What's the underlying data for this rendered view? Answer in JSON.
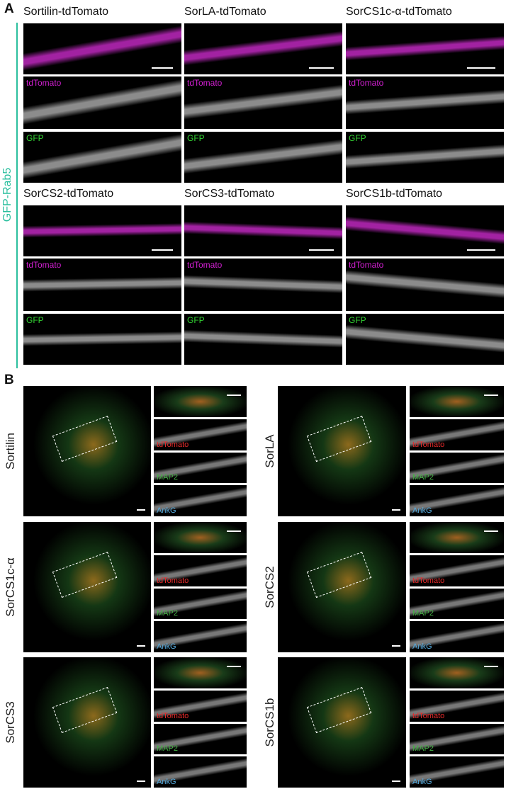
{
  "panel_a": {
    "label": "A",
    "side_label": "GFP-Rab5",
    "panels": [
      {
        "title": "Sortilin-tdTomato",
        "channels": [
          "tdTomato",
          "GFP"
        ]
      },
      {
        "title": "SorLA-tdTomato",
        "channels": [
          "tdTomato",
          "GFP"
        ]
      },
      {
        "title": "SorCS1c-α-tdTomato",
        "channels": [
          "tdTomato",
          "GFP"
        ]
      },
      {
        "title": "SorCS2-tdTomato",
        "channels": [
          "tdTomato",
          "GFP"
        ]
      },
      {
        "title": "SorCS3-tdTomato",
        "channels": [
          "tdTomato",
          "GFP"
        ]
      },
      {
        "title": "SorCS1b-tdTomato",
        "channels": [
          "tdTomato",
          "GFP"
        ]
      }
    ]
  },
  "panel_b": {
    "label": "B",
    "panels": [
      {
        "name": "Sortilin",
        "channels": [
          "tdTomato",
          "MAP2",
          "AnkG"
        ]
      },
      {
        "name": "SorLA",
        "channels": [
          "tdTomato",
          "MAP2",
          "AnkG"
        ]
      },
      {
        "name": "SorCS1c-α",
        "channels": [
          "tdTomato",
          "MAP2",
          "AnkG"
        ]
      },
      {
        "name": "SorCS2",
        "channels": [
          "tdTomato",
          "MAP2",
          "AnkG"
        ]
      },
      {
        "name": "SorCS3",
        "channels": [
          "tdTomato",
          "MAP2",
          "AnkG"
        ]
      },
      {
        "name": "SorCS1b",
        "channels": [
          "tdTomato",
          "MAP2",
          "AnkG"
        ]
      }
    ]
  }
}
